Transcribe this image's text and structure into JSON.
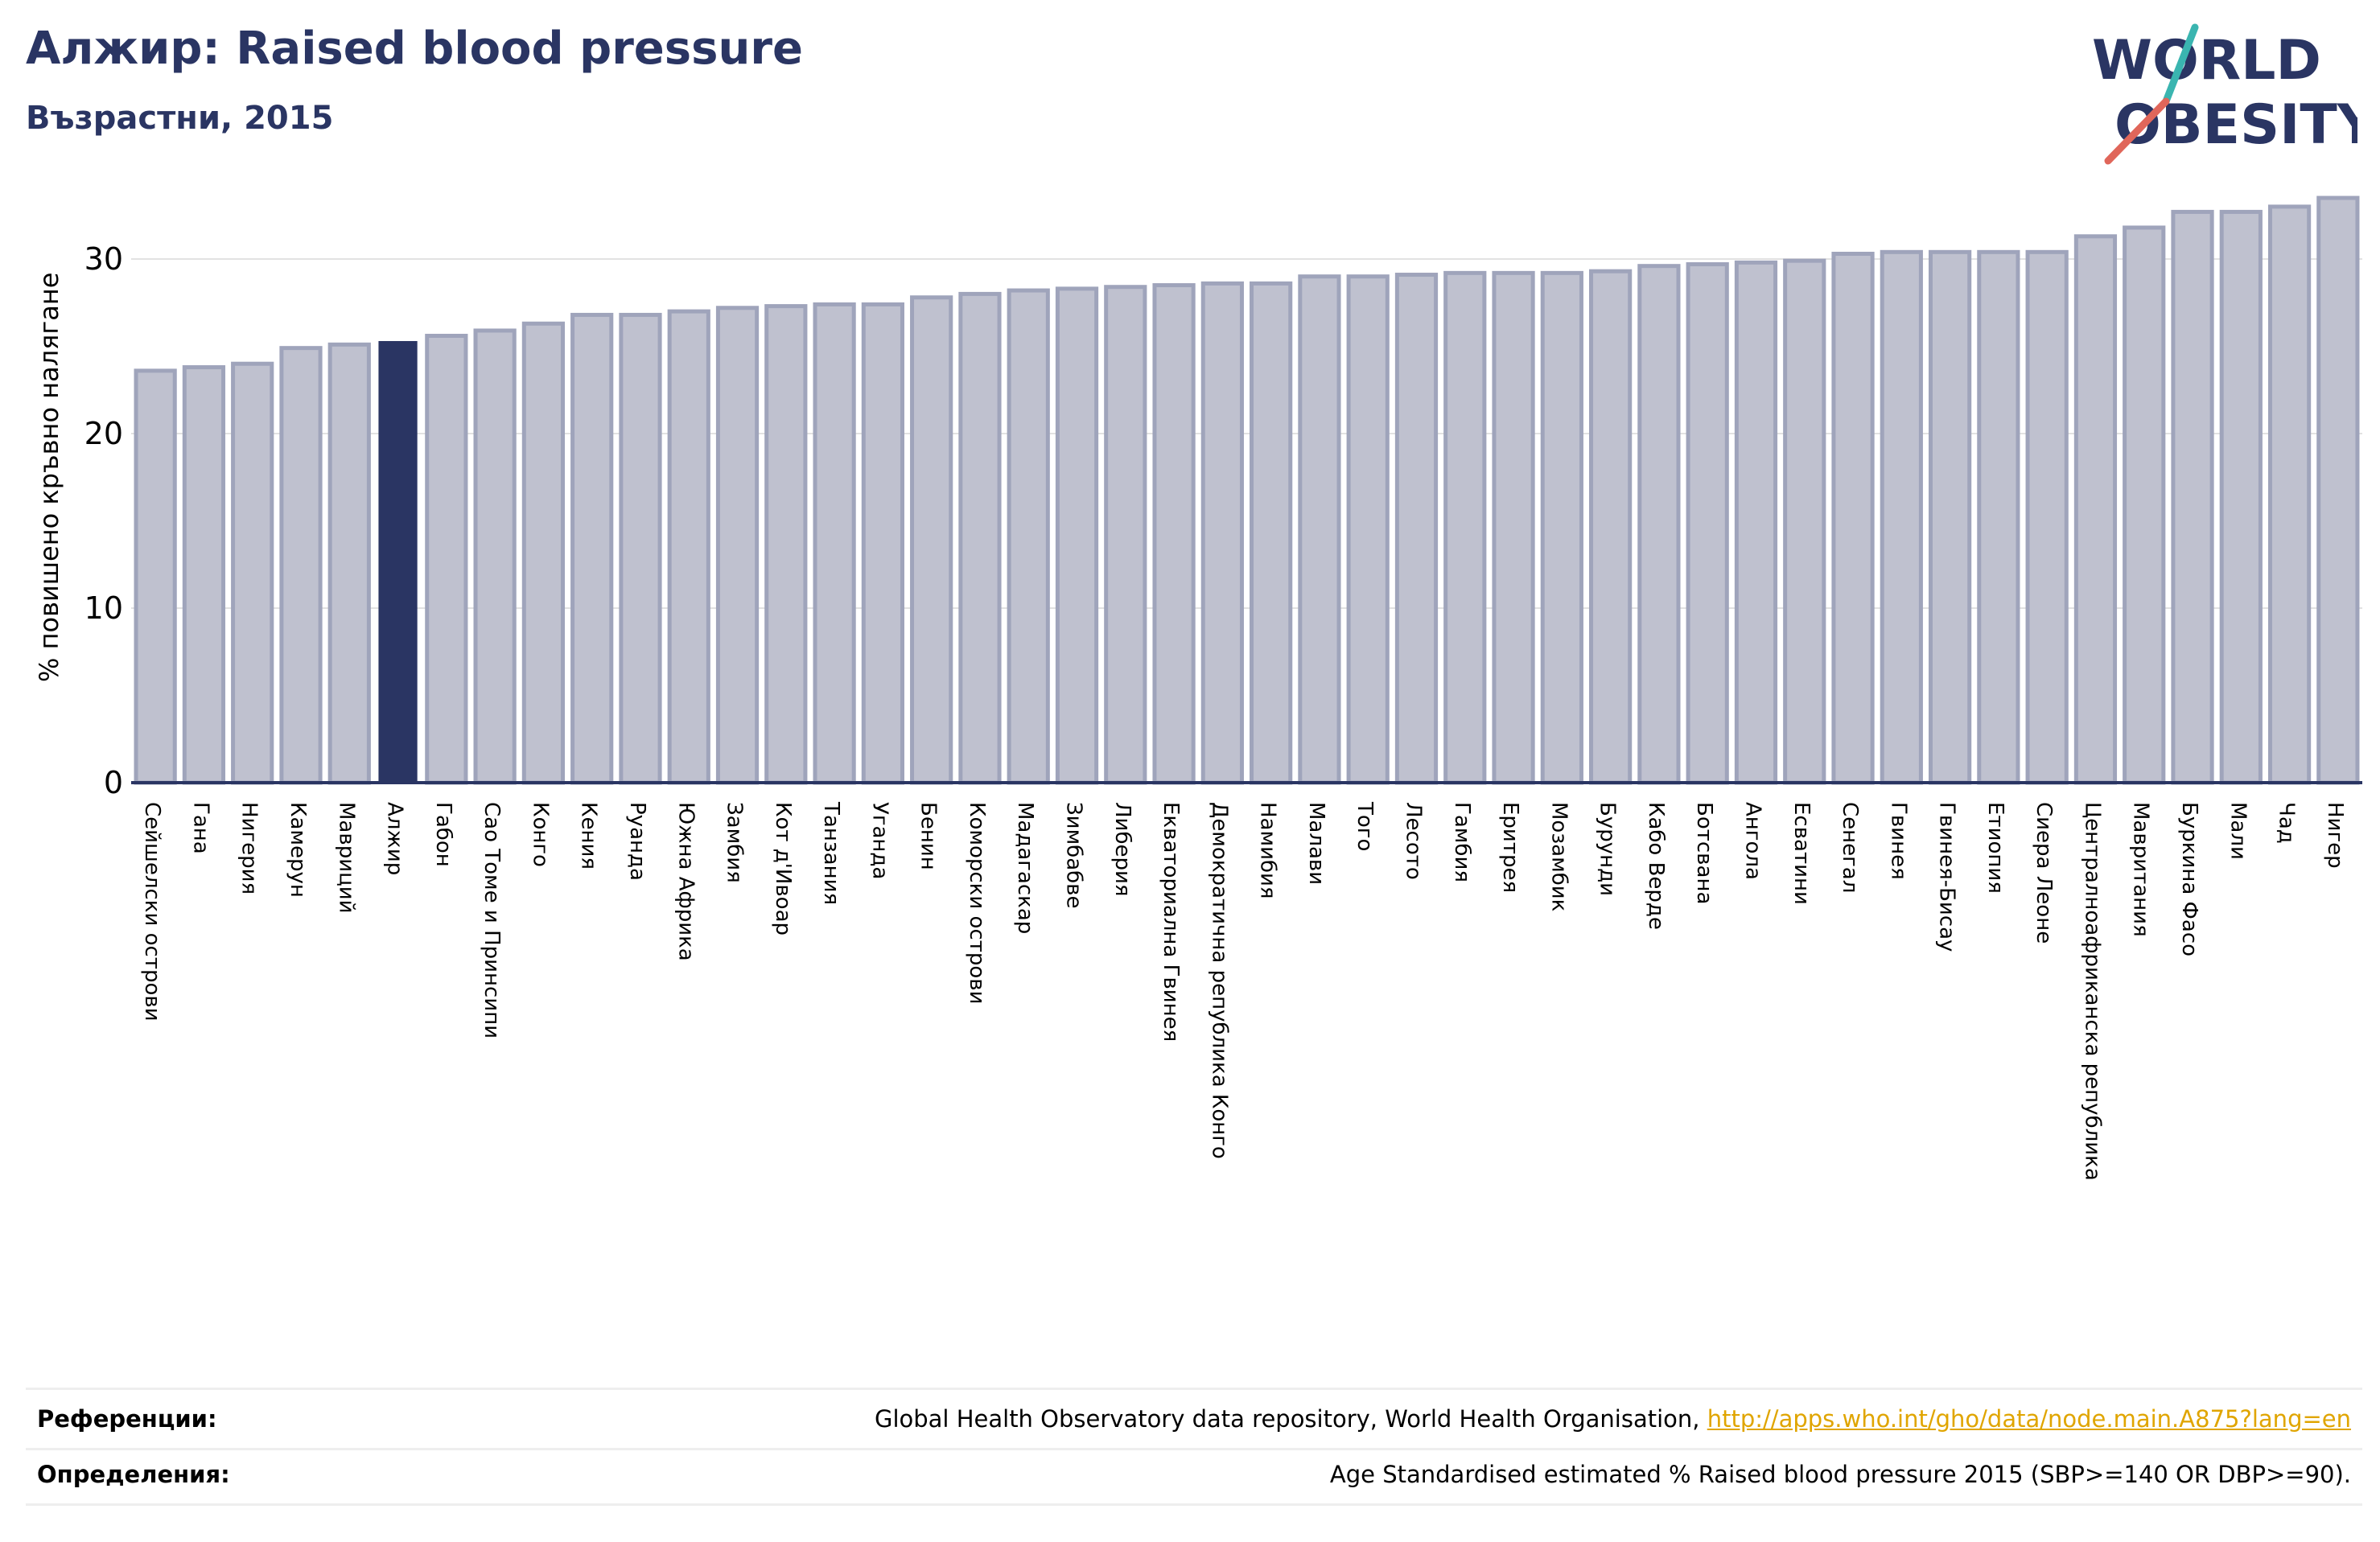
{
  "header": {
    "title": "Алжир: Raised blood pressure",
    "subtitle": "Възрастни, 2015"
  },
  "logo": {
    "line1": "WORLD",
    "line2": "OBESITY",
    "text_color": "#2a3563",
    "accent_teal": "#3ab5b0",
    "accent_red": "#e0665a"
  },
  "colors": {
    "bar_fill": "#bfc1cf",
    "bar_stroke": "#9fa4bb",
    "highlight_fill": "#2a3563",
    "axis": "#2a3563",
    "grid": "#e2e2e2"
  },
  "chart_data": {
    "type": "bar",
    "ylabel": "% повишено кръвно налягане",
    "xlabel": "",
    "ylim": [
      0,
      35
    ],
    "yticks": [
      0,
      10,
      20,
      30
    ],
    "grid": true,
    "highlight": "Алжир",
    "categories": [
      "Сейшелски острови",
      "Гана",
      "Нигерия",
      "Камерун",
      "Мавриций",
      "Алжир",
      "Габон",
      "Сао Томе и Принсипи",
      "Конго",
      "Кения",
      "Руанда",
      "Южна Африка",
      "Замбия",
      "Кот д'Ивоар",
      "Танзания",
      "Уганда",
      "Бенин",
      "Коморски острови",
      "Мадагаскар",
      "Зимбабве",
      "Либерия",
      "Екваториална Гвинея",
      "Демократична република Конго",
      "Намибия",
      "Малави",
      "Того",
      "Лесото",
      "Гамбия",
      "Еритрея",
      "Мозамбик",
      "Бурунди",
      "Кабо Верде",
      "Ботсвана",
      "Ангола",
      "Есватини",
      "Сенегал",
      "Гвинея",
      "Гвинея-Бисау",
      "Етиопия",
      "Сиера Леоне",
      "Централноафриканска република",
      "Мавритания",
      "Буркина Фасо",
      "Мали",
      "Чад",
      "Нигер"
    ],
    "values": [
      23.6,
      23.8,
      24.0,
      24.9,
      25.1,
      25.3,
      25.6,
      25.9,
      26.3,
      26.8,
      26.8,
      27.0,
      27.2,
      27.3,
      27.4,
      27.4,
      27.8,
      28.0,
      28.2,
      28.3,
      28.4,
      28.5,
      28.6,
      28.6,
      29.0,
      29.0,
      29.1,
      29.2,
      29.2,
      29.2,
      29.3,
      29.6,
      29.7,
      29.8,
      29.9,
      30.3,
      30.4,
      30.4,
      30.4,
      30.4,
      31.3,
      31.8,
      32.7,
      32.7,
      33.0,
      33.5
    ]
  },
  "footer": {
    "references_label": "Референции:",
    "references_text": "Global Health Observatory data repository, World Health Organisation,",
    "references_link": "http://apps.who.int/gho/data/node.main.A875?lang=en",
    "definitions_label": "Определения:",
    "definitions_text": "Age Standardised estimated % Raised blood pressure 2015 (SBP>=140 OR DBP>=90)."
  }
}
